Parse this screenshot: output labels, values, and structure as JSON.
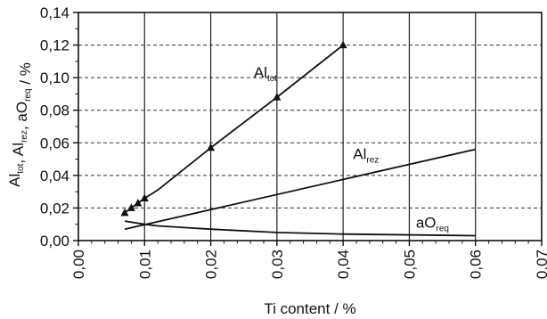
{
  "chart_data": {
    "type": "line",
    "xlabel": "Ti content / %",
    "ylabel": {
      "parts": [
        {
          "text": "Al",
          "sub": "tot"
        },
        {
          "text": ", Al",
          "sub": "rez"
        },
        {
          "text": ", aO",
          "sub": "req"
        },
        {
          "text": " / %",
          "sub": ""
        }
      ]
    },
    "xlim": [
      0,
      0.07
    ],
    "ylim": [
      0,
      0.14
    ],
    "x_ticks": [
      "0,00",
      "0,01",
      "0,02",
      "0,03",
      "0,04",
      "0,05",
      "0,06",
      "0,07"
    ],
    "y_ticks": [
      "0,00",
      "0,02",
      "0,04",
      "0,06",
      "0,08",
      "0,10",
      "0,12",
      "0,14"
    ],
    "x_tick_values": [
      0,
      0.01,
      0.02,
      0.03,
      0.04,
      0.05,
      0.06,
      0.07
    ],
    "y_tick_values": [
      0,
      0.02,
      0.04,
      0.06,
      0.08,
      0.1,
      0.12,
      0.14
    ],
    "grid": {
      "vertical": true,
      "horizontal": "dashed"
    },
    "series": [
      {
        "label_main": "Al",
        "label_sub": "tot",
        "markers": true,
        "points": [
          [
            0.007,
            0.017
          ],
          [
            0.008,
            0.02
          ],
          [
            0.009,
            0.023
          ],
          [
            0.01,
            0.026
          ],
          [
            0.012,
            0.031
          ],
          [
            0.02,
            0.057
          ],
          [
            0.03,
            0.088
          ],
          [
            0.04,
            0.12
          ]
        ],
        "marker_points": [
          [
            0.007,
            0.017
          ],
          [
            0.008,
            0.02
          ],
          [
            0.009,
            0.023
          ],
          [
            0.01,
            0.026
          ],
          [
            0.02,
            0.057
          ],
          [
            0.03,
            0.088
          ],
          [
            0.04,
            0.12
          ]
        ],
        "label_at": [
          0.0265,
          0.1
        ]
      },
      {
        "label_main": "Al",
        "label_sub": "rez",
        "markers": false,
        "points": [
          [
            0.007,
            0.007
          ],
          [
            0.06,
            0.056
          ]
        ],
        "label_at": [
          0.0415,
          0.05
        ]
      },
      {
        "label_main": "aO",
        "label_sub": "req",
        "markers": false,
        "points": [
          [
            0.007,
            0.012
          ],
          [
            0.01,
            0.01
          ],
          [
            0.012,
            0.009
          ],
          [
            0.016,
            0.008
          ],
          [
            0.02,
            0.007
          ],
          [
            0.03,
            0.005
          ],
          [
            0.04,
            0.004
          ],
          [
            0.06,
            0.003
          ]
        ],
        "label_at": [
          0.051,
          0.008
        ]
      }
    ]
  }
}
